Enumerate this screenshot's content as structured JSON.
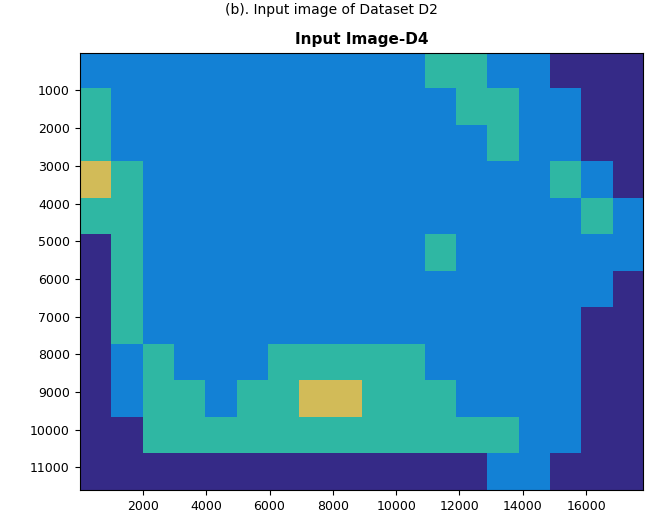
{
  "chart_data": {
    "type": "heatmap",
    "caption": "(b). Input image of Dataset D2",
    "title": "Input Image-D4",
    "xlim": [
      0,
      17800
    ],
    "ylim": [
      11600,
      0
    ],
    "xticks": [
      2000,
      4000,
      6000,
      8000,
      10000,
      12000,
      14000,
      16000
    ],
    "yticks": [
      1000,
      2000,
      3000,
      4000,
      5000,
      6000,
      7000,
      8000,
      9000,
      10000,
      11000
    ],
    "clim": [
      0,
      4
    ],
    "cells": [
      [
        1,
        1,
        1,
        1,
        1,
        1,
        1,
        1,
        1,
        1,
        1,
        2,
        2,
        1,
        1,
        0,
        0,
        0
      ],
      [
        2,
        1,
        1,
        1,
        1,
        1,
        1,
        1,
        1,
        1,
        1,
        1,
        2,
        2,
        1,
        1,
        0,
        0
      ],
      [
        2,
        1,
        1,
        1,
        1,
        1,
        1,
        1,
        1,
        1,
        1,
        1,
        1,
        2,
        1,
        1,
        0,
        0
      ],
      [
        3,
        2,
        1,
        1,
        1,
        1,
        1,
        1,
        1,
        1,
        1,
        1,
        1,
        1,
        1,
        2,
        1,
        0
      ],
      [
        2,
        2,
        1,
        1,
        1,
        1,
        1,
        1,
        1,
        1,
        1,
        1,
        1,
        1,
        1,
        1,
        2,
        1
      ],
      [
        0,
        2,
        1,
        1,
        1,
        1,
        1,
        1,
        1,
        1,
        1,
        2,
        1,
        1,
        1,
        1,
        1,
        1
      ],
      [
        0,
        2,
        1,
        1,
        1,
        1,
        1,
        1,
        1,
        1,
        1,
        1,
        1,
        1,
        1,
        1,
        1,
        0
      ],
      [
        0,
        2,
        1,
        1,
        1,
        1,
        1,
        1,
        1,
        1,
        1,
        1,
        1,
        1,
        1,
        1,
        0,
        0
      ],
      [
        0,
        1,
        2,
        1,
        1,
        1,
        2,
        2,
        2,
        2,
        2,
        1,
        1,
        1,
        1,
        1,
        0,
        0
      ],
      [
        0,
        1,
        2,
        2,
        1,
        2,
        2,
        3,
        3,
        2,
        2,
        2,
        1,
        1,
        1,
        1,
        0,
        0
      ],
      [
        0,
        0,
        2,
        2,
        2,
        2,
        2,
        2,
        2,
        2,
        2,
        2,
        2,
        2,
        1,
        1,
        0,
        0
      ],
      [
        0,
        0,
        0,
        0,
        0,
        0,
        0,
        0,
        0,
        0,
        0,
        0,
        0,
        1,
        1,
        0,
        0,
        0
      ]
    ]
  }
}
